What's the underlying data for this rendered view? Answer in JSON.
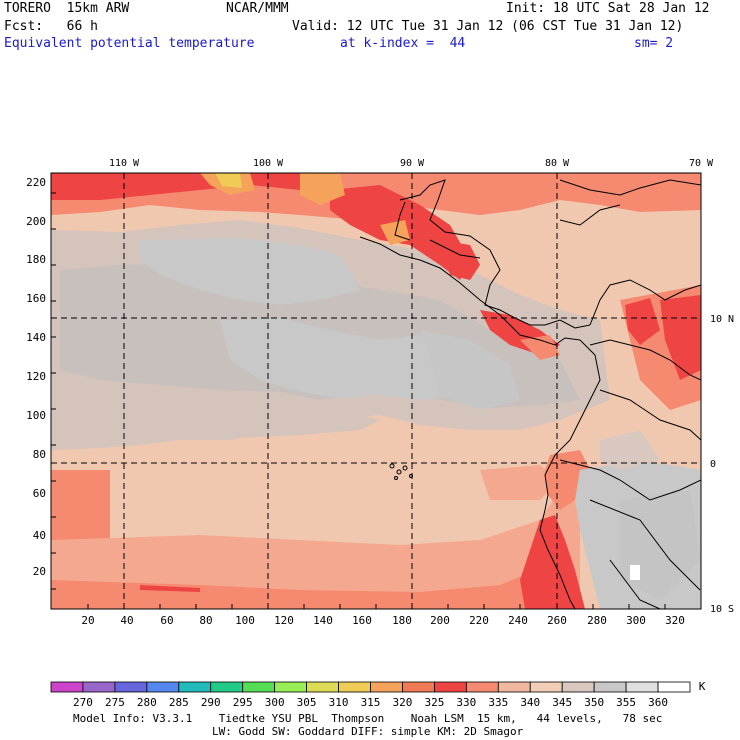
{
  "header": {
    "model": "TORERO  15km ARW",
    "center": "NCAR/MMM",
    "init": "Init: 18 UTC Sat 28 Jan 12",
    "fcst": "Fcst:   66 h",
    "valid": "Valid: 12 UTC Tue 31 Jan 12 (06 CST Tue 31 Jan 12)",
    "field": "Equivalent potential temperature",
    "kindex": "at k-index =  44",
    "sm": "sm= 2"
  },
  "map": {
    "top_lon_labels": [
      "110 W",
      "100 W",
      "90 W",
      "80 W",
      "70 W"
    ],
    "right_lat_labels": [
      "10 N",
      "0",
      "10 S"
    ],
    "y_ticks": [
      "20",
      "40",
      "60",
      "80",
      "100",
      "120",
      "140",
      "160",
      "180",
      "200",
      "220"
    ],
    "x_ticks": [
      "20",
      "40",
      "60",
      "80",
      "100",
      "120",
      "140",
      "160",
      "180",
      "200",
      "220",
      "240",
      "260",
      "280",
      "300",
      "320"
    ]
  },
  "colorbar": {
    "labels": [
      "270",
      "275",
      "280",
      "285",
      "290",
      "295",
      "300",
      "305",
      "310",
      "315",
      "320",
      "325",
      "330",
      "335",
      "340",
      "345",
      "350",
      "355",
      "360"
    ],
    "unit": "K",
    "colors": [
      "#cc44cc",
      "#9966cc",
      "#6666dd",
      "#5588ee",
      "#22bbbb",
      "#22cc88",
      "#55dd55",
      "#99ee55",
      "#dddd55",
      "#eecc55",
      "#f5a25a",
      "#f07a55",
      "#ee4444",
      "#f58a70",
      "#f0b8a0",
      "#f2cdb8",
      "#d8c8c0",
      "#c8c8c8",
      "#e0e0e0",
      "#ffffff"
    ]
  },
  "footer": {
    "line1": "Model Info: V3.3.1    Tiedtke YSU PBL  Thompson    Noah LSM  15 km,   44 levels,   78 sec",
    "line2": "LW: Godd SW: Goddard DIFF: simple KM: 2D Smagor"
  }
}
